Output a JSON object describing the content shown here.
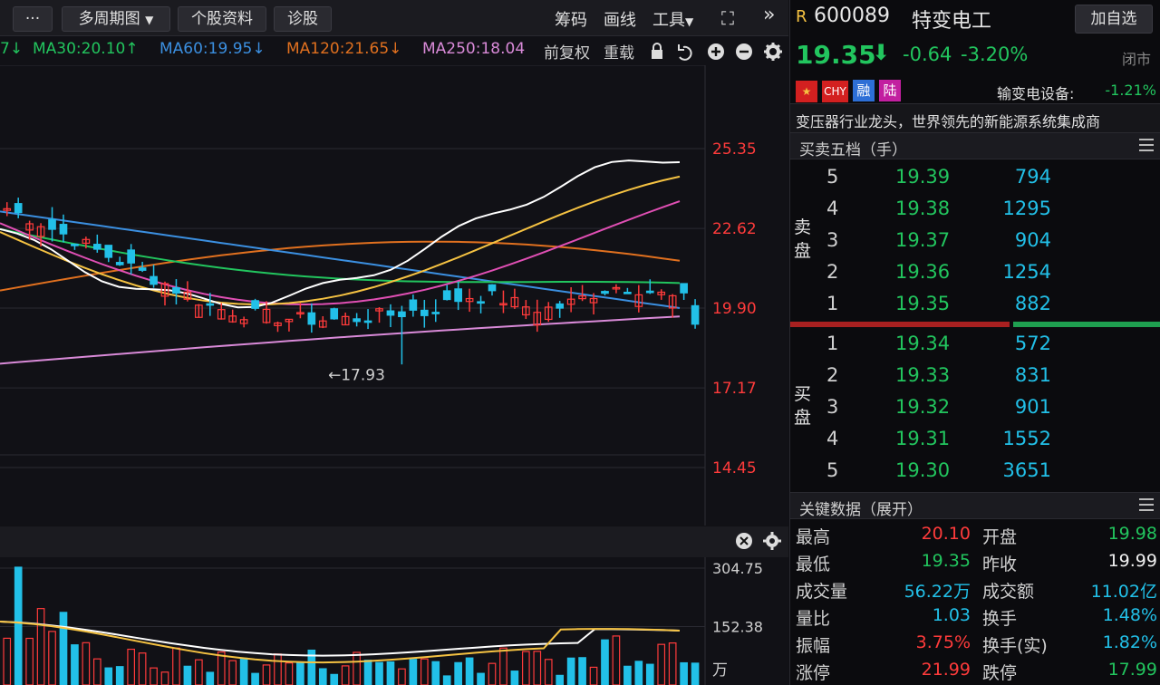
{
  "toolbar": {
    "more_label": "···",
    "period_label": "多周期图",
    "stock_info_label": "个股资料",
    "diagnose_label": "诊股",
    "chips_label": "筹码",
    "draw_label": "画线",
    "tools_label": "工具",
    "expand_label": "⛶",
    "collapse_label": "»"
  },
  "ma_row": {
    "ma_first_arrow": "7↓",
    "ma30": "MA30:20.10↑",
    "ma60": "MA60:19.95↓",
    "ma120": "MA120:21.65↓",
    "ma250": "MA250:18.04",
    "adjust_label": "前复权",
    "overlay_label": "重载"
  },
  "colors": {
    "up": "#ff3b3b",
    "down": "#22c0e8",
    "ma5": "#ffffff",
    "ma10": "#f5c242",
    "ma20": "#e04fb4",
    "ma30": "#22c55e",
    "ma60": "#3b8fe0",
    "ma120": "#e0701f",
    "ma250": "#d98ad8"
  },
  "kchart": {
    "y_ticks": [
      "25.35",
      "22.62",
      "19.90",
      "17.17",
      "14.45"
    ],
    "y_tick_values": [
      25.35,
      22.62,
      19.9,
      17.17,
      14.45
    ],
    "low_annotation": "←17.93"
  },
  "volchart": {
    "y_ticks": [
      "304.75",
      "152.38"
    ],
    "unit": "万"
  },
  "chart_data": {
    "type": "candlestick",
    "ylim": [
      14.45,
      25.35
    ],
    "last": {
      "open": 19.98,
      "high": 20.1,
      "low": 19.35,
      "close": 19.35
    },
    "low_mark": 17.93,
    "volume_ylim": [
      0,
      304.75
    ]
  },
  "stock": {
    "badge": "R",
    "code": "600089",
    "name": "特变电工",
    "add_watch_label": "加自选",
    "price": "19.35",
    "change": "-0.64",
    "change_pct": "-3.20%",
    "status": "闭市",
    "tags": [
      "🇨🇳",
      "CHY",
      "融",
      "陆"
    ],
    "sector": "输变电设备:",
    "sector_change": "-1.21%",
    "description": "变压器行业龙头，世界领先的新能源系统集成商"
  },
  "orderbook": {
    "title": "买卖五档（手）",
    "sell_label": "卖盘",
    "buy_label": "买盘",
    "asks": [
      {
        "level": "5",
        "price": "19.39",
        "volume": "794"
      },
      {
        "level": "4",
        "price": "19.38",
        "volume": "1295"
      },
      {
        "level": "3",
        "price": "19.37",
        "volume": "904"
      },
      {
        "level": "2",
        "price": "19.36",
        "volume": "1254"
      },
      {
        "level": "1",
        "price": "19.35",
        "volume": "882"
      }
    ],
    "bids": [
      {
        "level": "1",
        "price": "19.34",
        "volume": "572"
      },
      {
        "level": "2",
        "price": "19.33",
        "volume": "831"
      },
      {
        "level": "3",
        "price": "19.32",
        "volume": "901"
      },
      {
        "level": "4",
        "price": "19.31",
        "volume": "1552"
      },
      {
        "level": "5",
        "price": "19.30",
        "volume": "3651"
      }
    ]
  },
  "keydata": {
    "title": "关键数据（展开）",
    "rows": [
      {
        "l1": "最高",
        "v1": "20.10",
        "c1": "red",
        "l2": "开盘",
        "v2": "19.98",
        "c2": "green"
      },
      {
        "l1": "最低",
        "v1": "19.35",
        "c1": "green",
        "l2": "昨收",
        "v2": "19.99",
        "c2": "white"
      },
      {
        "l1": "成交量",
        "v1": "56.22万",
        "c1": "cyan",
        "l2": "成交额",
        "v2": "11.02亿",
        "c2": "cyan"
      },
      {
        "l1": "量比",
        "v1": "1.03",
        "c1": "cyan",
        "l2": "换手",
        "v2": "1.48%",
        "c2": "cyan"
      },
      {
        "l1": "振幅",
        "v1": "3.75%",
        "c1": "red",
        "l2": "换手(实)",
        "v2": "1.82%",
        "c2": "cyan"
      },
      {
        "l1": "涨停",
        "v1": "21.99",
        "c1": "red",
        "l2": "跌停",
        "v2": "17.99",
        "c2": "green"
      }
    ]
  }
}
